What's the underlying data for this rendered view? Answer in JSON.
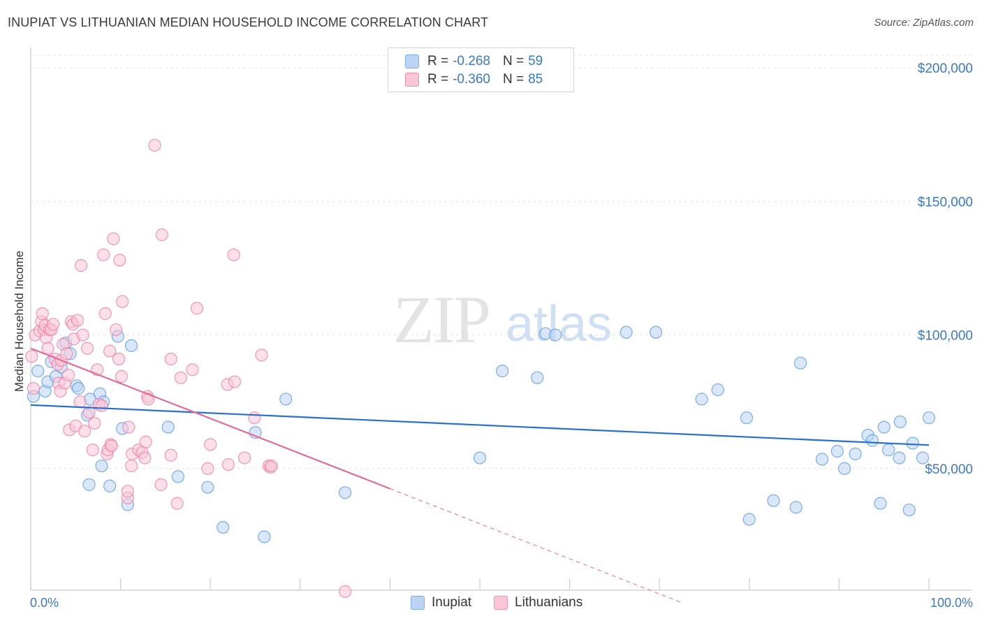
{
  "title": "INUPIAT VS LITHUANIAN MEDIAN HOUSEHOLD INCOME CORRELATION CHART",
  "source": "Source: ZipAtlas.com",
  "watermark": {
    "zip": "ZIP",
    "atlas": "atlas"
  },
  "legend": {
    "r_label": "R =",
    "n_label": "N =",
    "rows": [
      {
        "name": "Inupiat",
        "r": "-0.268",
        "n": "59",
        "color": "#7aaee8",
        "fill": "#bcd3f3"
      },
      {
        "name": "Lithuanians",
        "r": "-0.360",
        "n": "85",
        "color": "#f08fb0",
        "fill": "#f9c6d7"
      }
    ]
  },
  "bottom_legend": [
    "Inupiat",
    "Lithuanians"
  ],
  "chart_data": {
    "type": "scatter",
    "title": "INUPIAT VS LITHUANIAN MEDIAN HOUSEHOLD INCOME CORRELATION CHART",
    "xlabel": "",
    "ylabel": "Median Household Income",
    "xlim": [
      0,
      100
    ],
    "ylim": [
      0,
      210000
    ],
    "x_tick_labels": [
      "0.0%",
      "100.0%"
    ],
    "y_ticks": [
      50000,
      100000,
      150000,
      200000
    ],
    "y_tick_labels": [
      "$50,000",
      "$100,000",
      "$150,000",
      "$200,000"
    ],
    "series": [
      {
        "name": "Inupiat",
        "color": "#5b9be0",
        "fill": "#bcd3f3",
        "trend": {
          "x0": 0,
          "y0": 73800,
          "x1": 100,
          "y1": 58800,
          "color": "#2b6fcc",
          "dashed_from": null
        },
        "points": [
          [
            0.3,
            77000
          ],
          [
            0.8,
            86500
          ],
          [
            1.6,
            79000
          ],
          [
            1.9,
            82500
          ],
          [
            2.3,
            90000
          ],
          [
            2.8,
            84500
          ],
          [
            3.4,
            88000
          ],
          [
            3.9,
            97000
          ],
          [
            4.4,
            93000
          ],
          [
            5.1,
            81000
          ],
          [
            5.3,
            80000
          ],
          [
            6.3,
            70000
          ],
          [
            6.5,
            44000
          ],
          [
            6.6,
            76000
          ],
          [
            7.7,
            78000
          ],
          [
            7.9,
            51000
          ],
          [
            8.1,
            75000
          ],
          [
            8.8,
            43500
          ],
          [
            9.7,
            99500
          ],
          [
            10.2,
            65000
          ],
          [
            10.8,
            36500
          ],
          [
            11.2,
            96000
          ],
          [
            15.3,
            65500
          ],
          [
            16.4,
            47000
          ],
          [
            19.7,
            43000
          ],
          [
            21.4,
            28000
          ],
          [
            25.0,
            63500
          ],
          [
            26.0,
            24500
          ],
          [
            28.4,
            76000
          ],
          [
            35.0,
            41000
          ],
          [
            50.0,
            54000
          ],
          [
            52.5,
            86500
          ],
          [
            56.4,
            84000
          ],
          [
            57.3,
            100500
          ],
          [
            58.4,
            100000
          ],
          [
            66.3,
            101000
          ],
          [
            69.6,
            101000
          ],
          [
            74.7,
            76000
          ],
          [
            76.5,
            79500
          ],
          [
            79.7,
            69000
          ],
          [
            80.0,
            31000
          ],
          [
            82.7,
            38000
          ],
          [
            85.2,
            35500
          ],
          [
            85.7,
            89500
          ],
          [
            88.1,
            53500
          ],
          [
            89.8,
            56500
          ],
          [
            90.6,
            50000
          ],
          [
            91.8,
            55500
          ],
          [
            93.2,
            62500
          ],
          [
            93.7,
            60500
          ],
          [
            94.6,
            37000
          ],
          [
            95.0,
            65500
          ],
          [
            95.5,
            57000
          ],
          [
            96.7,
            54000
          ],
          [
            96.8,
            67500
          ],
          [
            97.8,
            34500
          ],
          [
            98.2,
            59500
          ],
          [
            99.3,
            54000
          ],
          [
            100.0,
            69000
          ]
        ]
      },
      {
        "name": "Lithuanians",
        "color": "#ec80a6",
        "fill": "#f9c6d7",
        "trend": {
          "x0": 0,
          "y0": 95000,
          "x1": 40,
          "y1": 42500,
          "color": "#e06c97",
          "dashed_until_x": 72.5
        },
        "points": [
          [
            0.1,
            92000
          ],
          [
            0.3,
            80000
          ],
          [
            0.5,
            100000
          ],
          [
            1.0,
            101500
          ],
          [
            1.2,
            105000
          ],
          [
            1.3,
            108000
          ],
          [
            1.5,
            102000
          ],
          [
            1.6,
            103500
          ],
          [
            1.7,
            99000
          ],
          [
            1.9,
            95000
          ],
          [
            2.1,
            102000
          ],
          [
            2.3,
            102000
          ],
          [
            2.5,
            104000
          ],
          [
            2.7,
            91000
          ],
          [
            3.0,
            89000
          ],
          [
            3.1,
            82000
          ],
          [
            3.3,
            79000
          ],
          [
            3.4,
            90500
          ],
          [
            3.6,
            96500
          ],
          [
            3.8,
            82000
          ],
          [
            4.0,
            93000
          ],
          [
            4.2,
            85000
          ],
          [
            4.3,
            64500
          ],
          [
            4.5,
            105000
          ],
          [
            4.7,
            104000
          ],
          [
            4.8,
            98500
          ],
          [
            5.0,
            66000
          ],
          [
            5.2,
            105500
          ],
          [
            5.5,
            75000
          ],
          [
            5.6,
            126000
          ],
          [
            5.8,
            100000
          ],
          [
            6.0,
            64000
          ],
          [
            6.3,
            95000
          ],
          [
            6.5,
            71000
          ],
          [
            6.9,
            57000
          ],
          [
            7.1,
            67000
          ],
          [
            7.4,
            87000
          ],
          [
            7.6,
            74000
          ],
          [
            7.9,
            73500
          ],
          [
            8.1,
            130000
          ],
          [
            8.3,
            108000
          ],
          [
            8.5,
            55500
          ],
          [
            8.6,
            57000
          ],
          [
            8.8,
            94000
          ],
          [
            8.9,
            59000
          ],
          [
            9.0,
            58500
          ],
          [
            9.2,
            136000
          ],
          [
            9.5,
            102000
          ],
          [
            9.8,
            91000
          ],
          [
            9.9,
            128000
          ],
          [
            10.1,
            84500
          ],
          [
            10.2,
            112500
          ],
          [
            10.8,
            39000
          ],
          [
            10.8,
            41500
          ],
          [
            10.9,
            65500
          ],
          [
            11.2,
            51000
          ],
          [
            11.3,
            55500
          ],
          [
            12.0,
            57000
          ],
          [
            12.4,
            56000
          ],
          [
            12.7,
            54000
          ],
          [
            12.8,
            60000
          ],
          [
            13.0,
            77000
          ],
          [
            13.1,
            76000
          ],
          [
            13.8,
            171000
          ],
          [
            14.5,
            44000
          ],
          [
            14.6,
            137500
          ],
          [
            15.6,
            91000
          ],
          [
            15.6,
            55000
          ],
          [
            16.3,
            37000
          ],
          [
            16.7,
            84000
          ],
          [
            18.0,
            87000
          ],
          [
            18.5,
            110000
          ],
          [
            19.7,
            50000
          ],
          [
            20.0,
            59000
          ],
          [
            21.9,
            81500
          ],
          [
            22.0,
            51500
          ],
          [
            22.6,
            130000
          ],
          [
            22.7,
            82500
          ],
          [
            23.8,
            54000
          ],
          [
            24.9,
            69000
          ],
          [
            25.7,
            92500
          ],
          [
            26.5,
            51000
          ],
          [
            26.7,
            50500
          ],
          [
            26.8,
            51000
          ],
          [
            35.0,
            4000
          ]
        ]
      }
    ]
  }
}
